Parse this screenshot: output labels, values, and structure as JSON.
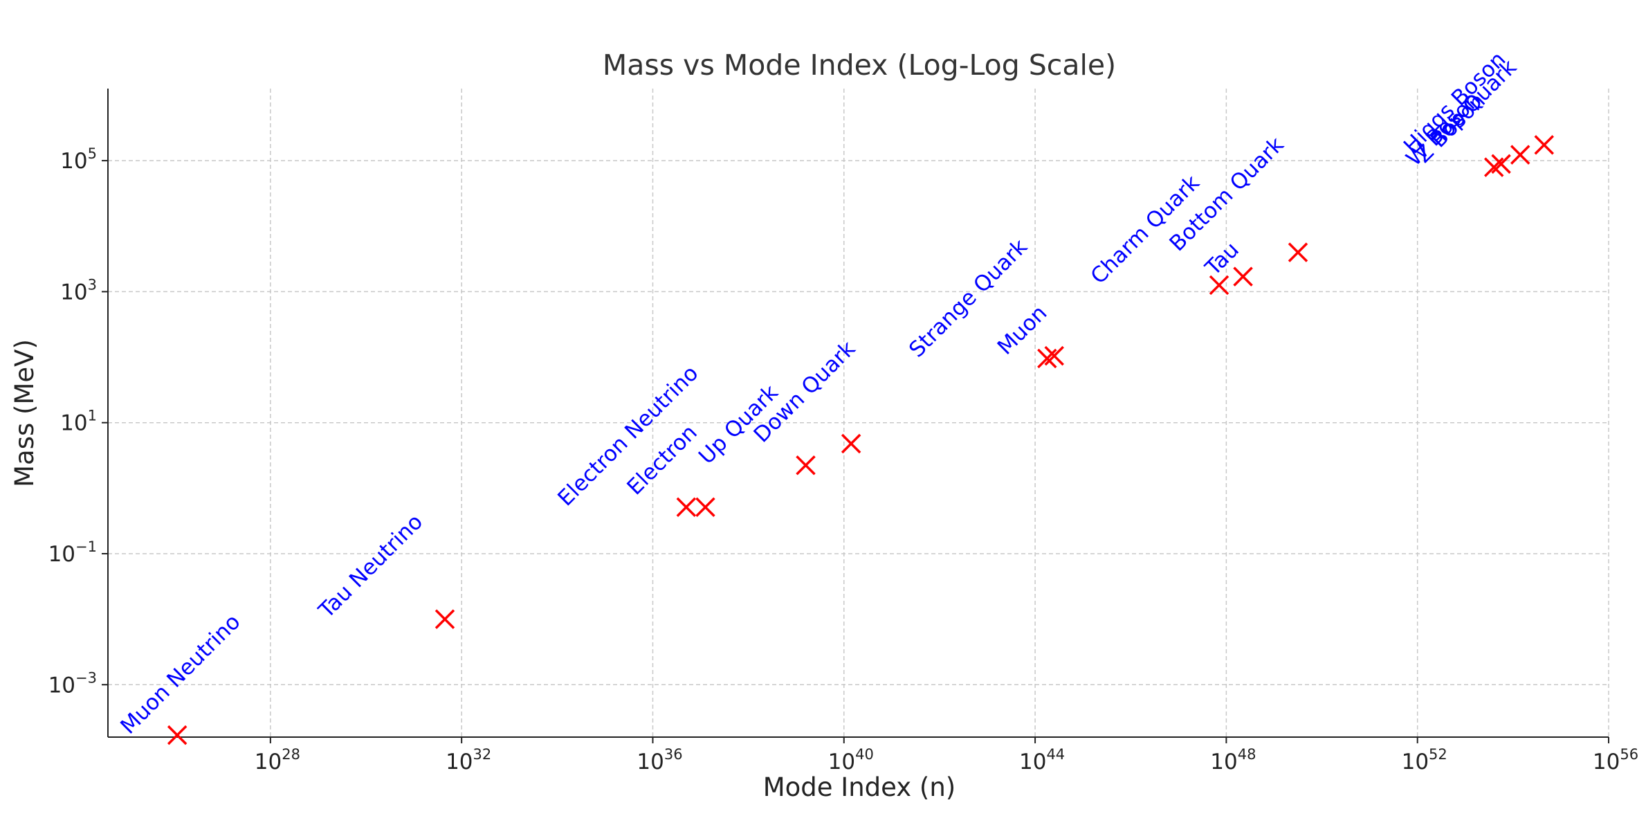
{
  "chart_data": {
    "type": "scatter",
    "title": "Mass vs Mode Index (Log-Log Scale)",
    "xlabel": "Mode Index (n)",
    "ylabel": "Mass (MeV)",
    "xscale": "log",
    "yscale": "log",
    "xlim_log10": [
      24.6,
      56.0
    ],
    "ylim_log10": [
      -3.8,
      6.1
    ],
    "x_ticks_log10": [
      28,
      32,
      36,
      40,
      44,
      48,
      52,
      56
    ],
    "y_ticks_log10": [
      -3,
      -1,
      1,
      3,
      5
    ],
    "grid": true,
    "marker": "x",
    "marker_color": "#ff0000",
    "label_color": "#0000ff",
    "points": [
      {
        "name": "Muon Neutrino",
        "log10_n": 26.05,
        "log10_mass": -3.77
      },
      {
        "name": "Tau Neutrino",
        "log10_n": 31.65,
        "log10_mass": -2.0
      },
      {
        "name": "Electron Neutrino",
        "log10_n": 36.7,
        "log10_mass": -0.29
      },
      {
        "name": "Electron",
        "log10_n": 37.1,
        "log10_mass": -0.29
      },
      {
        "name": "Up Quark",
        "log10_n": 39.2,
        "log10_mass": 0.35
      },
      {
        "name": "Down Quark",
        "log10_n": 40.15,
        "log10_mass": 0.68
      },
      {
        "name": "Strange Quark",
        "log10_n": 44.25,
        "log10_mass": 1.98
      },
      {
        "name": "Muon",
        "log10_n": 44.4,
        "log10_mass": 2.02
      },
      {
        "name": "Charm Quark",
        "log10_n": 49.5,
        "log10_mass": 3.6
      },
      {
        "name": "Bottom Quark",
        "log10_n": 48.35,
        "log10_mass": 3.23
      },
      {
        "name": "Tau",
        "log10_n": 47.85,
        "log10_mass": 3.1
      },
      {
        "name": "W Boson",
        "log10_n": 53.6,
        "log10_mass": 4.9
      },
      {
        "name": "Z Boson",
        "log10_n": 53.75,
        "log10_mass": 4.95
      },
      {
        "name": "Higgs Boson",
        "log10_n": 54.15,
        "log10_mass": 5.09
      },
      {
        "name": "Top Quark",
        "log10_n": 54.65,
        "log10_mass": 5.24
      }
    ],
    "label_anchors_log10": [
      {
        "name": "Muon Neutrino",
        "log10_n": 25.05,
        "log10_mass": -3.77
      },
      {
        "name": "Tau Neutrino",
        "log10_n": 29.2,
        "log10_mass": -2.0
      },
      {
        "name": "Electron Neutrino",
        "log10_n": 34.2,
        "log10_mass": -0.29
      },
      {
        "name": "Electron",
        "log10_n": 35.65,
        "log10_mass": -0.12
      },
      {
        "name": "Up Quark",
        "log10_n": 37.15,
        "log10_mass": 0.35
      },
      {
        "name": "Down Quark",
        "log10_n": 38.3,
        "log10_mass": 0.68
      },
      {
        "name": "Strange Quark",
        "log10_n": 41.55,
        "log10_mass": 1.98
      },
      {
        "name": "Muon",
        "log10_n": 43.4,
        "log10_mass": 2.02
      },
      {
        "name": "Charm Quark",
        "log10_n": 45.35,
        "log10_mass": 3.1
      },
      {
        "name": "Bottom Quark",
        "log10_n": 47.0,
        "log10_mass": 3.6
      },
      {
        "name": "Tau",
        "log10_n": 47.75,
        "log10_mass": 3.23
      },
      {
        "name": "W Boson",
        "log10_n": 51.95,
        "log10_mass": 4.9
      },
      {
        "name": "Z Boson",
        "log10_n": 52.15,
        "log10_mass": 4.95
      },
      {
        "name": "Higgs Boson",
        "log10_n": 51.9,
        "log10_mass": 5.09
      },
      {
        "name": "Top Quark",
        "log10_n": 52.5,
        "log10_mass": 5.24
      }
    ]
  }
}
